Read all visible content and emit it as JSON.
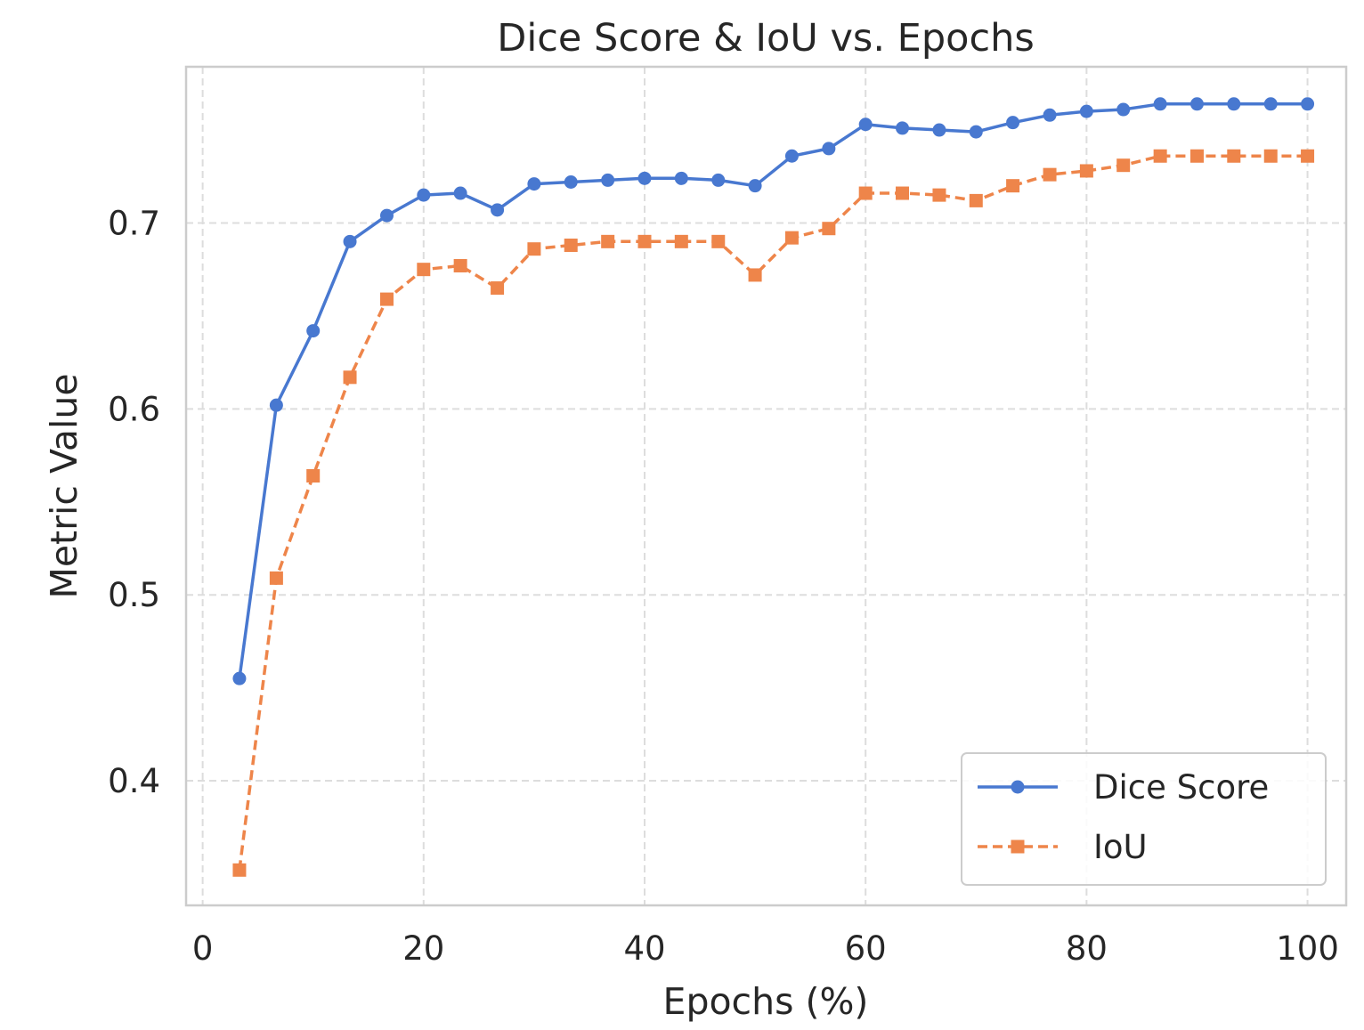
{
  "chart_data": {
    "type": "line",
    "title": "Dice Score & IoU vs. Epochs",
    "xlabel": "Epochs (%)",
    "ylabel": "Metric Value",
    "xlim": [
      -1.5,
      103.5
    ],
    "ylim": [
      0.333,
      0.784
    ],
    "xticks": [
      0,
      20,
      40,
      60,
      80,
      100
    ],
    "xtick_labels": [
      "0",
      "20",
      "40",
      "60",
      "80",
      "100"
    ],
    "yticks": [
      0.4,
      0.5,
      0.6,
      0.7
    ],
    "ytick_labels": [
      "0.4",
      "0.5",
      "0.6",
      "0.7"
    ],
    "grid": true,
    "legend_position": "lower-right",
    "x": [
      3.33,
      6.67,
      10.0,
      13.33,
      16.67,
      20.0,
      23.33,
      26.67,
      30.0,
      33.33,
      36.67,
      40.0,
      43.33,
      46.67,
      50.0,
      53.33,
      56.67,
      60.0,
      63.33,
      66.67,
      70.0,
      73.33,
      76.67,
      80.0,
      83.33,
      86.67,
      90.0,
      93.33,
      96.67,
      100.0
    ],
    "series": [
      {
        "name": "Dice Score",
        "color": "#4878d0",
        "marker": "circle",
        "line_style": "solid",
        "values": [
          0.455,
          0.602,
          0.642,
          0.69,
          0.704,
          0.715,
          0.716,
          0.707,
          0.721,
          0.722,
          0.723,
          0.724,
          0.724,
          0.723,
          0.72,
          0.736,
          0.74,
          0.753,
          0.751,
          0.75,
          0.749,
          0.754,
          0.758,
          0.76,
          0.761,
          0.764,
          0.764,
          0.764,
          0.764,
          0.764
        ]
      },
      {
        "name": "IoU",
        "color": "#ee854a",
        "marker": "square",
        "line_style": "dashed",
        "values": [
          0.352,
          0.509,
          0.564,
          0.617,
          0.659,
          0.675,
          0.677,
          0.665,
          0.686,
          0.688,
          0.69,
          0.69,
          0.69,
          0.69,
          0.672,
          0.692,
          0.697,
          0.716,
          0.716,
          0.715,
          0.712,
          0.72,
          0.726,
          0.728,
          0.731,
          0.736,
          0.736,
          0.736,
          0.736,
          0.736
        ]
      }
    ]
  }
}
